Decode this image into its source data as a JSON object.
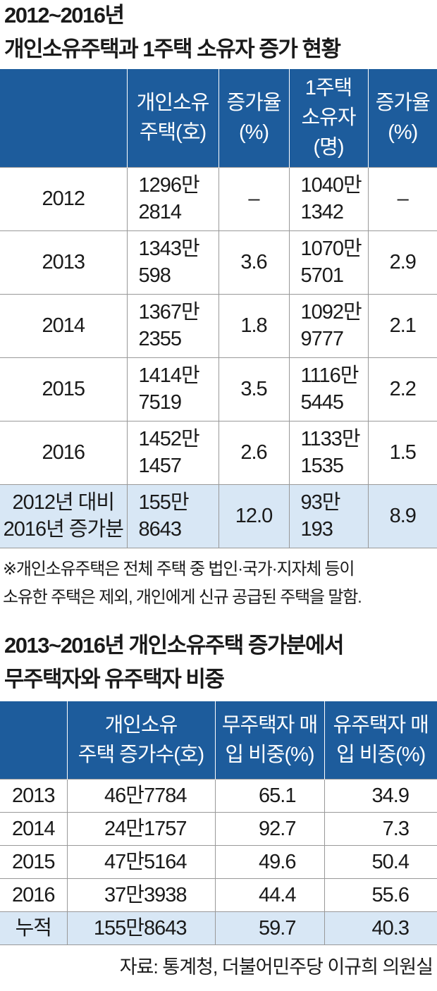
{
  "table1": {
    "title": "2012~2016년\n개인소유주택과 1주택 소유자 증가 현황",
    "header": [
      "",
      "개인소유\n주택(호)",
      "증가율\n(%)",
      "1주택\n소유자\n(명)",
      "증가율\n(%)"
    ],
    "rows": [
      [
        "2012",
        "1296만\n2814",
        "–",
        "1040만\n1342",
        "–"
      ],
      [
        "2013",
        "1343만\n598",
        "3.6",
        "1070만\n5701",
        "2.9"
      ],
      [
        "2014",
        "1367만\n2355",
        "1.8",
        "1092만\n9777",
        "2.1"
      ],
      [
        "2015",
        "1414만\n7519",
        "3.5",
        "1116만\n5445",
        "2.2"
      ],
      [
        "2016",
        "1452만\n1457",
        "2.6",
        "1133만\n1535",
        "1.5"
      ],
      [
        "2012년 대비\n2016년 증가분",
        "155만\n8643",
        "12.0",
        "93만\n193",
        "8.9"
      ]
    ],
    "note": "※개인소유주택은 전체 주택 중 법인·국가·지자체 등이\n소유한 주택은 제외, 개인에게 신규 공급된 주택을 말함."
  },
  "table2": {
    "title": "2013~2016년 개인소유주택 증가분에서\n무주택자와 유주택자 비중",
    "header": [
      "",
      "개인소유\n주택 증가수(호)",
      "무주택자 매\n입 비중(%)",
      "유주택자 매\n입 비중(%)"
    ],
    "rows": [
      [
        "2013",
        "46만7784",
        "65.1",
        "34.9"
      ],
      [
        "2014",
        "24만1757",
        "92.7",
        "7.3"
      ],
      [
        "2015",
        "47만5164",
        "49.6",
        "50.4"
      ],
      [
        "2016",
        "37만3938",
        "44.4",
        "55.6"
      ],
      [
        "누적",
        "155만8643",
        "59.7",
        "40.3"
      ]
    ]
  },
  "source": "자료: 통계청, 더불어민주당 이규희 의원실"
}
